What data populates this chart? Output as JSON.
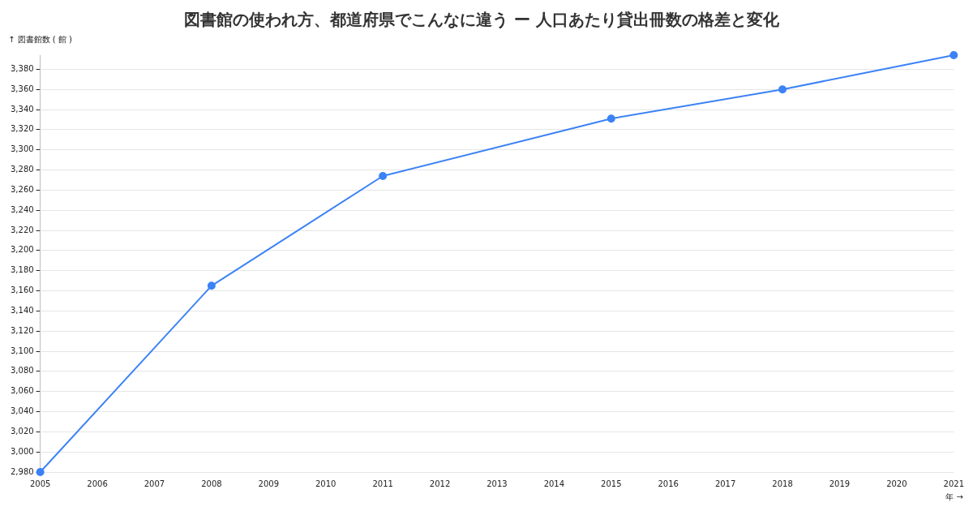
{
  "chart_data": {
    "type": "line",
    "title": "図書館の使われ方、都道府県でこんなに違う ー 人口あたり貸出冊数の格差と変化",
    "ylabel": "↑ 図書館数 ( 館 )",
    "xlabel": "年 →",
    "x": [
      2005,
      2008,
      2011,
      2015,
      2018,
      2021
    ],
    "series": [
      {
        "color": "#3b82f6",
        "values": [
          2980,
          3165,
          3274,
          3331,
          3360,
          3394
        ]
      }
    ],
    "xlim": [
      2005,
      2021
    ],
    "xticks": [
      2005,
      2006,
      2007,
      2008,
      2009,
      2010,
      2011,
      2012,
      2013,
      2014,
      2015,
      2016,
      2017,
      2018,
      2019,
      2020,
      2021
    ],
    "ylim": [
      2980,
      3394
    ],
    "yticks": [
      {
        "value": 2980,
        "label": "2,980"
      },
      {
        "value": 3000,
        "label": "3,000"
      },
      {
        "value": 3020,
        "label": "3,020"
      },
      {
        "value": 3040,
        "label": "3,040"
      },
      {
        "value": 3060,
        "label": "3,060"
      },
      {
        "value": 3080,
        "label": "3,080"
      },
      {
        "value": 3100,
        "label": "3,100"
      },
      {
        "value": 3120,
        "label": "3,120"
      },
      {
        "value": 3140,
        "label": "3,140"
      },
      {
        "value": 3160,
        "label": "3,160"
      },
      {
        "value": 3180,
        "label": "3,180"
      },
      {
        "value": 3200,
        "label": "3,200"
      },
      {
        "value": 3220,
        "label": "3,220"
      },
      {
        "value": 3240,
        "label": "3,240"
      },
      {
        "value": 3260,
        "label": "3,260"
      },
      {
        "value": 3280,
        "label": "3,280"
      },
      {
        "value": 3300,
        "label": "3,300"
      },
      {
        "value": 3320,
        "label": "3,320"
      },
      {
        "value": 3340,
        "label": "3,340"
      },
      {
        "value": 3360,
        "label": "3,360"
      },
      {
        "value": 3380,
        "label": "3,380"
      }
    ],
    "grid": "y",
    "marker": "circle",
    "line_style": "solid",
    "legend": false
  }
}
